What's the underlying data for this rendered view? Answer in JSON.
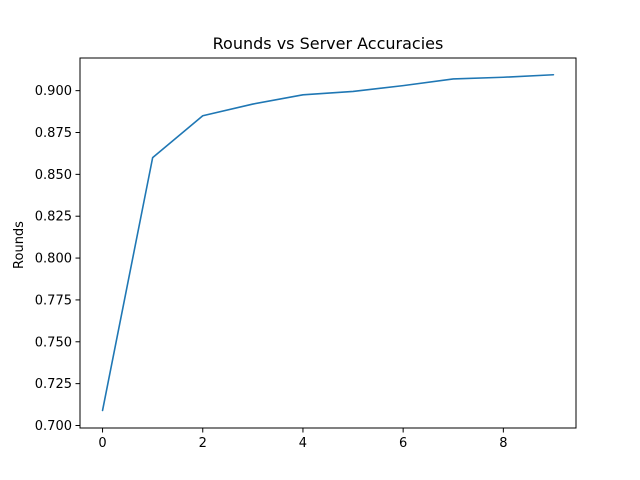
{
  "chart_data": {
    "type": "line",
    "title": "Rounds vs Server Accuracies",
    "xlabel": "",
    "ylabel": "Rounds",
    "xlim": [
      -0.45,
      9.45
    ],
    "ylim": [
      0.6985,
      0.9195
    ],
    "xticks": [
      0,
      2,
      4,
      6,
      8
    ],
    "yticks": [
      0.7,
      0.725,
      0.75,
      0.775,
      0.8,
      0.825,
      0.85,
      0.875,
      0.9
    ],
    "ytick_labels": [
      "0.700",
      "0.725",
      "0.750",
      "0.775",
      "0.800",
      "0.825",
      "0.850",
      "0.875",
      "0.900"
    ],
    "grid": false,
    "series": [
      {
        "color": "#1f77b4",
        "x": [
          0,
          1,
          2,
          3,
          4,
          5,
          6,
          7,
          8,
          9
        ],
        "values": [
          0.709,
          0.86,
          0.885,
          0.892,
          0.8975,
          0.8995,
          0.903,
          0.907,
          0.908,
          0.9095
        ]
      }
    ]
  }
}
